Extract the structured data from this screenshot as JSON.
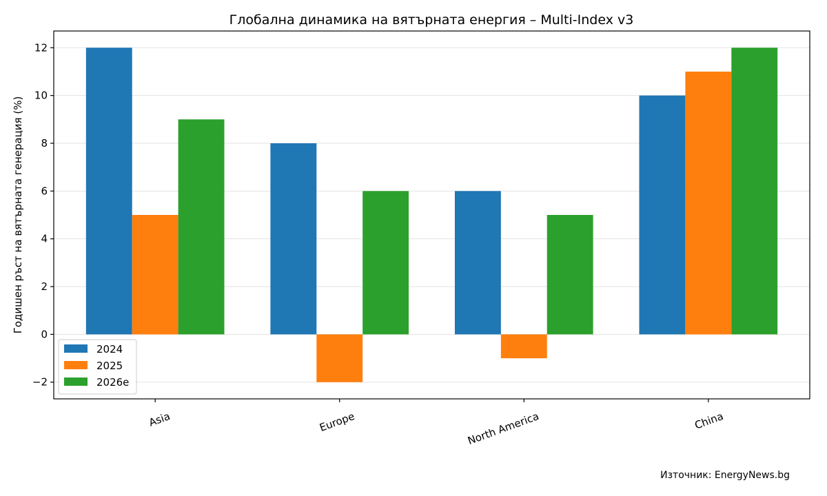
{
  "chart_data": {
    "type": "bar",
    "title": "Глобална динамика на вятърната енергия – Multi-Index v3",
    "xlabel": "",
    "ylabel": "Годишен ръст на вятърната генерация (%)",
    "categories": [
      "Asia",
      "Europe",
      "North America",
      "China"
    ],
    "series": [
      {
        "name": "2024",
        "color": "#1f77b4",
        "values": [
          12,
          8,
          6,
          10
        ]
      },
      {
        "name": "2025",
        "color": "#ff7f0e",
        "values": [
          5,
          -2,
          -1,
          11
        ]
      },
      {
        "name": "2026e",
        "color": "#2ca02c",
        "values": [
          9,
          6,
          5,
          12
        ]
      }
    ],
    "yticks": [
      -2,
      0,
      2,
      4,
      6,
      8,
      10,
      12
    ],
    "ytick_labels": [
      "−2",
      "0",
      "2",
      "4",
      "6",
      "8",
      "10",
      "12"
    ],
    "ylim": [
      -2.7,
      12.7
    ],
    "grid": "horizontal",
    "legend_position": "lower-left",
    "source": "Източник: EnergyNews.bg"
  }
}
